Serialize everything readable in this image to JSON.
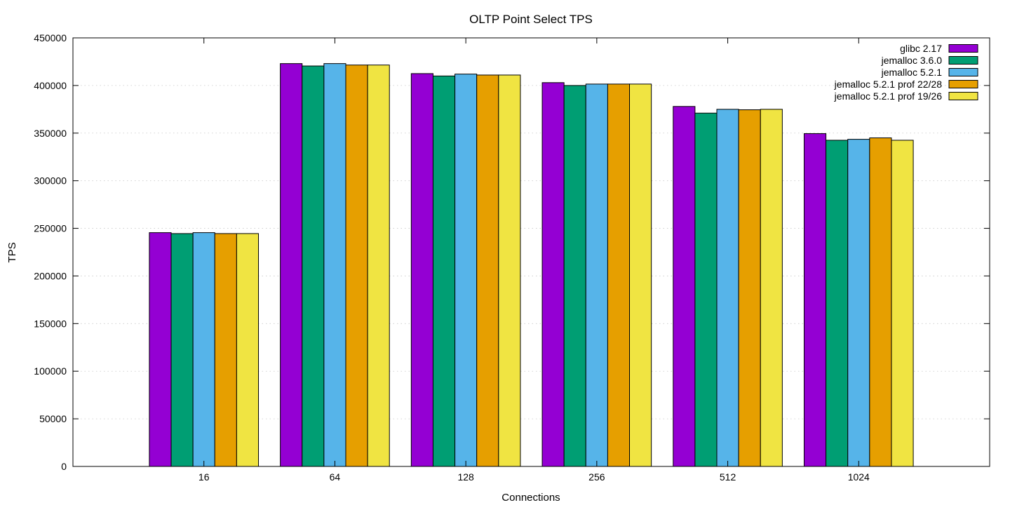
{
  "chart_data": {
    "type": "bar",
    "title": "OLTP Point Select TPS",
    "xlabel": "Connections",
    "ylabel": "TPS",
    "ylim": [
      0,
      450000
    ],
    "yticks": [
      0,
      50000,
      100000,
      150000,
      200000,
      250000,
      300000,
      350000,
      400000,
      450000
    ],
    "grid": true,
    "legend_position": "top-right",
    "categories": [
      "16",
      "64",
      "128",
      "256",
      "512",
      "1024"
    ],
    "series": [
      {
        "name": "glibc 2.17",
        "color": "#9400d3",
        "values": [
          245500,
          423000,
          412500,
          403000,
          378000,
          349500
        ]
      },
      {
        "name": "jemalloc 3.6.0",
        "color": "#009e73",
        "values": [
          244500,
          420500,
          410000,
          400000,
          371000,
          342500
        ]
      },
      {
        "name": "jemalloc 5.2.1",
        "color": "#56b4e9",
        "values": [
          245500,
          423000,
          412000,
          401500,
          375000,
          343500
        ]
      },
      {
        "name": "jemalloc 5.2.1 prof 22/28",
        "color": "#e69f00",
        "values": [
          244500,
          421500,
          411000,
          401500,
          374500,
          345000
        ]
      },
      {
        "name": "jemalloc 5.2.1 prof 19/26",
        "color": "#f0e442",
        "values": [
          244500,
          421500,
          411000,
          401500,
          375000,
          342500
        ]
      }
    ]
  }
}
